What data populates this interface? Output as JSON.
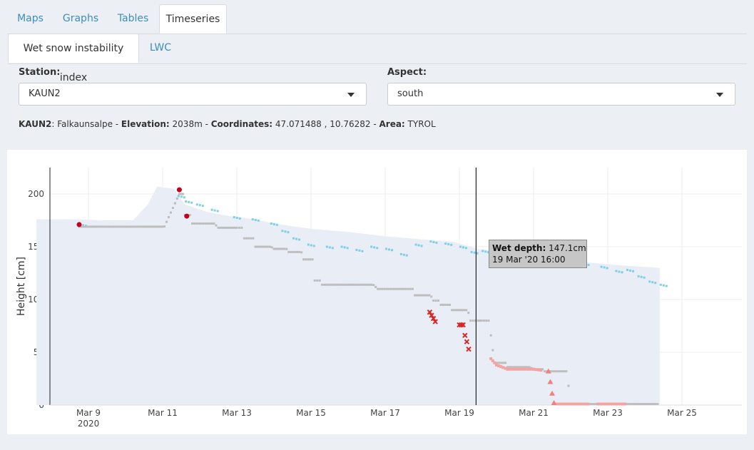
{
  "tabs": [
    {
      "label": "Maps",
      "active": false
    },
    {
      "label": "Graphs",
      "active": false
    },
    {
      "label": "Tables",
      "active": false
    },
    {
      "label": "Timeseries",
      "active": true
    }
  ],
  "subtabs": [
    {
      "label": "Wet snow instability index",
      "active": true
    },
    {
      "label": "LWC",
      "active": false
    }
  ],
  "station": {
    "label": "Station:",
    "value": "KAUN2"
  },
  "aspect": {
    "label": "Aspect:",
    "value": "south"
  },
  "station_info": {
    "id": "KAUN2",
    "name": ": Falkaunsalpe - ",
    "elevation_label": "Elevation:",
    "elevation": " 2038m - ",
    "coordinates_label": "Coordinates:",
    "coordinates": " 47.071488 , 10.76282 - ",
    "area_label": "Area:",
    "area": " TYROL"
  },
  "tooltip": {
    "label": "Wet depth:",
    "value": " 147.1cm",
    "date": "19 Mar '20 16:00"
  },
  "chart_data": {
    "type": "line",
    "ylabel": "Height [cm]",
    "xlabel": "",
    "ylim": [
      0,
      225
    ],
    "yticks": [
      0,
      50,
      100,
      150,
      200
    ],
    "xticks": [
      {
        "day": 9,
        "label": "Mar 9",
        "sub": "2020"
      },
      {
        "day": 11,
        "label": "Mar 11",
        "sub": ""
      },
      {
        "day": 13,
        "label": "Mar 13",
        "sub": ""
      },
      {
        "day": 15,
        "label": "Mar 15",
        "sub": ""
      },
      {
        "day": 17,
        "label": "Mar 17",
        "sub": ""
      },
      {
        "day": 19,
        "label": "Mar 19",
        "sub": ""
      },
      {
        "day": 21,
        "label": "Mar 21",
        "sub": ""
      },
      {
        "day": 23,
        "label": "Mar 23",
        "sub": ""
      },
      {
        "day": 25,
        "label": "Mar 25",
        "sub": ""
      }
    ],
    "colors": {
      "snow": "#e9edf6",
      "upper": "#7fcfe8",
      "lower": "#bdbdbd",
      "lower_pink": "#f4a3a3",
      "red_marker": "#d62728",
      "red_dot": "#c0001c",
      "tri": "#f08080"
    },
    "cursor_day": 19.45,
    "snow_height": [
      [
        7.6,
        176
      ],
      [
        8.7,
        176
      ],
      [
        9.4,
        175
      ],
      [
        10.2,
        175
      ],
      [
        10.6,
        190
      ],
      [
        10.85,
        207
      ],
      [
        11.3,
        205
      ],
      [
        11.6,
        190
      ],
      [
        12.2,
        183
      ],
      [
        12.8,
        179
      ],
      [
        13.5,
        176
      ],
      [
        14.0,
        172
      ],
      [
        15.0,
        167
      ],
      [
        16.0,
        164
      ],
      [
        17.0,
        160
      ],
      [
        18.0,
        157
      ],
      [
        18.8,
        155
      ],
      [
        19.5,
        148
      ],
      [
        20.5,
        143
      ],
      [
        21.5,
        139
      ],
      [
        22.5,
        135
      ],
      [
        23.5,
        132
      ],
      [
        24.4,
        130
      ]
    ],
    "upper_layer": [
      [
        8.75,
        171
      ],
      [
        11.4,
        198
      ],
      [
        11.6,
        193
      ],
      [
        11.9,
        190
      ],
      [
        12.3,
        185
      ],
      [
        12.9,
        178
      ],
      [
        13.4,
        176
      ],
      [
        13.9,
        172
      ],
      [
        14.2,
        165
      ],
      [
        14.5,
        158
      ],
      [
        14.9,
        152
      ],
      [
        15.4,
        150
      ],
      [
        15.8,
        150
      ],
      [
        16.2,
        147
      ],
      [
        16.6,
        150
      ],
      [
        17.0,
        148
      ],
      [
        17.4,
        143
      ],
      [
        17.8,
        152
      ],
      [
        18.2,
        155
      ],
      [
        18.6,
        153
      ],
      [
        19.0,
        150
      ],
      [
        19.3,
        145
      ],
      [
        19.6,
        146
      ],
      [
        20.0,
        143
      ],
      [
        20.3,
        138
      ],
      [
        20.7,
        140
      ],
      [
        21.1,
        135
      ],
      [
        21.5,
        133
      ],
      [
        21.9,
        136
      ],
      [
        22.3,
        134
      ],
      [
        22.8,
        131
      ],
      [
        23.2,
        127
      ],
      [
        23.5,
        128
      ],
      [
        23.8,
        122
      ],
      [
        24.1,
        117
      ],
      [
        24.4,
        114
      ]
    ],
    "lower_layer": [
      [
        8.75,
        169
      ],
      [
        11.45,
        200
      ],
      [
        11.6,
        180
      ],
      [
        11.8,
        172
      ],
      [
        12.5,
        168
      ],
      [
        13.0,
        168
      ],
      [
        13.2,
        158
      ],
      [
        13.5,
        150
      ],
      [
        14.0,
        148
      ],
      [
        14.4,
        145
      ],
      [
        14.8,
        138
      ],
      [
        15.1,
        118
      ],
      [
        15.3,
        114
      ],
      [
        16.0,
        114
      ],
      [
        16.8,
        110
      ],
      [
        17.5,
        110
      ],
      [
        17.8,
        104
      ],
      [
        18.3,
        99
      ],
      [
        18.5,
        95
      ],
      [
        18.8,
        90
      ],
      [
        19.3,
        80
      ],
      [
        19.5,
        80
      ],
      [
        19.6,
        80
      ],
      [
        19.85,
        66
      ],
      [
        19.9,
        52
      ],
      [
        19.95,
        40
      ],
      [
        20.3,
        36
      ],
      [
        21.0,
        34
      ],
      [
        21.3,
        32
      ],
      [
        22.0,
        1
      ],
      [
        24.4,
        1
      ]
    ],
    "lower_pink": [
      [
        19.85,
        44
      ],
      [
        20.0,
        38
      ],
      [
        20.3,
        34
      ],
      [
        21.0,
        34
      ],
      [
        21.2,
        33
      ]
    ],
    "red_dots": [
      [
        8.75,
        171
      ],
      [
        11.45,
        204
      ],
      [
        11.65,
        179
      ]
    ],
    "red_x": [
      [
        18.2,
        88
      ],
      [
        18.25,
        85
      ],
      [
        18.3,
        82
      ],
      [
        18.35,
        79
      ],
      [
        19.0,
        76
      ],
      [
        19.05,
        76
      ],
      [
        19.1,
        76
      ],
      [
        19.15,
        66
      ],
      [
        19.2,
        60
      ],
      [
        19.25,
        53
      ]
    ],
    "triangles": [
      [
        21.4,
        32
      ],
      [
        21.45,
        22
      ],
      [
        21.5,
        11
      ],
      [
        21.55,
        2
      ]
    ],
    "pink_bottom": [
      [
        21.6,
        1
      ],
      [
        22.5,
        1
      ],
      [
        22.7,
        1
      ],
      [
        23.5,
        1
      ],
      [
        24.0,
        1
      ]
    ]
  }
}
